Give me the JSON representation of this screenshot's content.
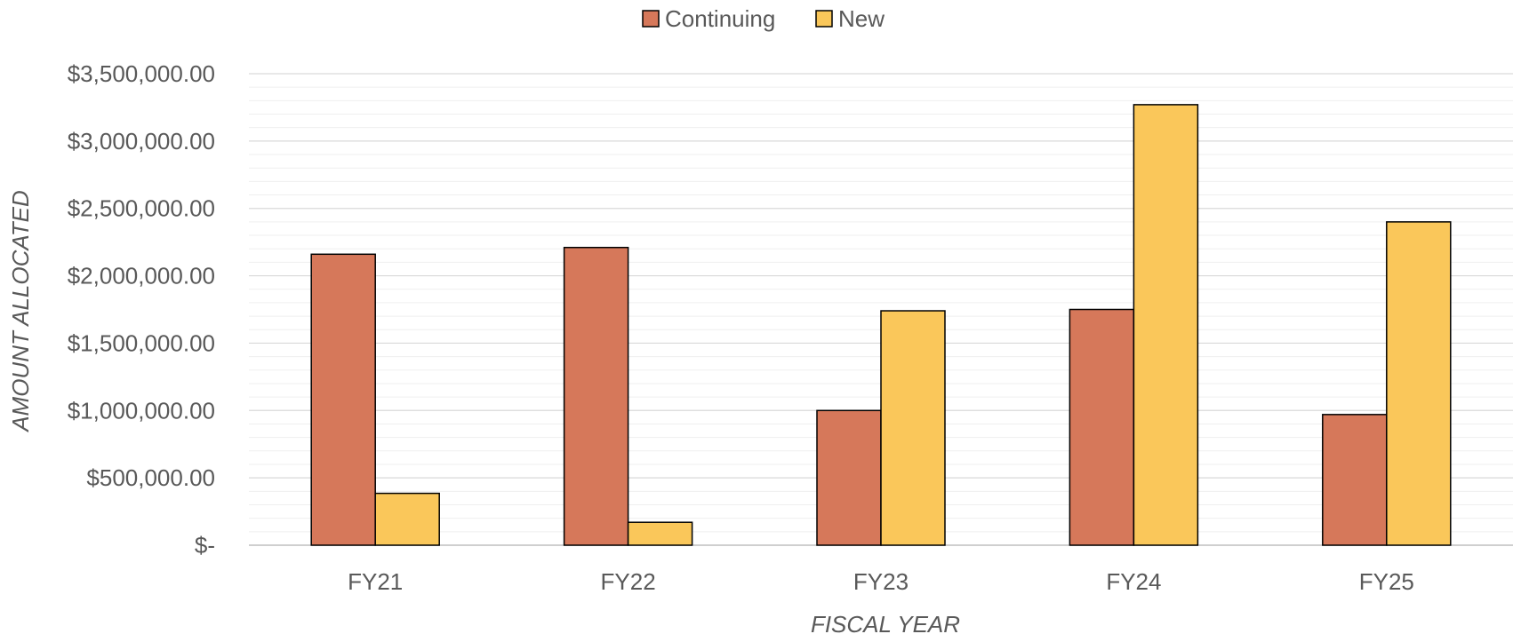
{
  "chart_data": {
    "type": "bar",
    "categories": [
      "FY21",
      "FY22",
      "FY23",
      "FY24",
      "FY25"
    ],
    "series": [
      {
        "name": "Continuing",
        "color": "#D6785A",
        "values": [
          2160000,
          2210000,
          1000000,
          1750000,
          970000
        ]
      },
      {
        "name": "New",
        "color": "#FAC75A",
        "values": [
          385000,
          170000,
          1740000,
          3270000,
          2400000
        ]
      }
    ],
    "xlabel": "FISCAL YEAR",
    "ylabel": "AMOUNT ALLOCATED",
    "ylim": [
      0,
      3500000
    ],
    "yticks": [
      0,
      500000,
      1000000,
      1500000,
      2000000,
      2500000,
      3000000,
      3500000
    ],
    "ytick_labels": [
      "$-",
      "$500,000.00",
      "$1,000,000.00",
      "$1,500,000.00",
      "$2,000,000.00",
      "$2,500,000.00",
      "$3,000,000.00",
      "$3,500,000.00"
    ],
    "grid": true,
    "minor_grid": true,
    "legend_position": "top-center"
  }
}
